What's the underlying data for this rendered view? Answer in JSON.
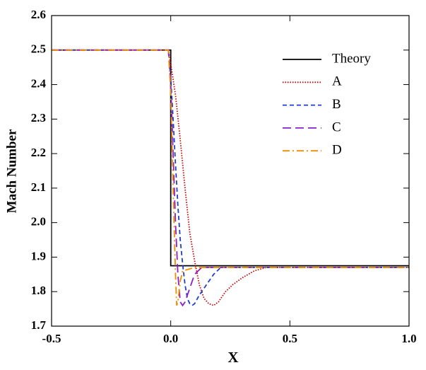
{
  "chart_data": {
    "type": "line",
    "xlabel": "X",
    "ylabel": "Mach Number",
    "xlim": [
      -0.5,
      1.0
    ],
    "ylim": [
      1.7,
      2.6
    ],
    "xticks": [
      -0.5,
      {
        "value": 0,
        "label": "0.0"
      },
      0.5,
      {
        "value": 1,
        "label": "1.0"
      }
    ],
    "yticks": [
      1.7,
      1.8,
      1.9,
      {
        "value": 2,
        "label": "2.0"
      },
      2.1,
      2.2,
      2.3,
      2.4,
      2.5,
      2.6
    ],
    "legend": "upper right",
    "series": [
      {
        "name": "Theory",
        "color": "#000000",
        "line_style": "solid",
        "x": [
          -0.5,
          0,
          0,
          1.0
        ],
        "values": [
          2.5,
          2.5,
          1.875,
          1.875
        ]
      },
      {
        "name": "A",
        "color": "#cc0000",
        "line_style": "dotted",
        "x": [
          -0.5,
          -0.01,
          0,
          0.02,
          0.04,
          0.06,
          0.08,
          0.1,
          0.12,
          0.14,
          0.16,
          0.18,
          0.2,
          0.23,
          0.26,
          0.3,
          0.35,
          0.4,
          0.5,
          0.7,
          1.0
        ],
        "values": [
          2.5,
          2.5,
          2.46,
          2.37,
          2.24,
          2.1,
          1.97,
          1.89,
          1.82,
          1.78,
          1.765,
          1.76,
          1.77,
          1.8,
          1.82,
          1.84,
          1.86,
          1.87,
          1.87,
          1.87,
          1.87
        ]
      },
      {
        "name": "B",
        "color": "#1f3fc8",
        "line_style": "dashed",
        "x": [
          -0.5,
          -0.01,
          0,
          0.01,
          0.02,
          0.03,
          0.04,
          0.05,
          0.06,
          0.07,
          0.08,
          0.09,
          0.1,
          0.12,
          0.15,
          0.18,
          0.21,
          0.3,
          0.5,
          1.0
        ],
        "values": [
          2.5,
          2.5,
          2.42,
          2.3,
          2.17,
          2.05,
          1.95,
          1.88,
          1.82,
          1.78,
          1.765,
          1.76,
          1.765,
          1.79,
          1.82,
          1.85,
          1.87,
          1.87,
          1.87,
          1.87
        ]
      },
      {
        "name": "C",
        "color": "#8a1fc8",
        "line_style": "long-dashed",
        "x": [
          -0.5,
          -0.01,
          0,
          0.01,
          0.02,
          0.03,
          0.04,
          0.05,
          0.06,
          0.08,
          0.1,
          0.13,
          0.3,
          1.0
        ],
        "values": [
          2.5,
          2.5,
          2.4,
          2.2,
          2.0,
          1.85,
          1.77,
          1.76,
          1.77,
          1.81,
          1.85,
          1.87,
          1.87,
          1.87
        ]
      },
      {
        "name": "D",
        "color": "#f08c00",
        "line_style": "dash-dot",
        "x": [
          -0.5,
          -0.01,
          0,
          0.01,
          0.02,
          0.025,
          0.03,
          0.04,
          0.05,
          0.1,
          1.0
        ],
        "values": [
          2.5,
          2.5,
          2.38,
          2.1,
          1.85,
          1.76,
          1.77,
          1.83,
          1.86,
          1.87,
          1.87
        ]
      }
    ]
  }
}
